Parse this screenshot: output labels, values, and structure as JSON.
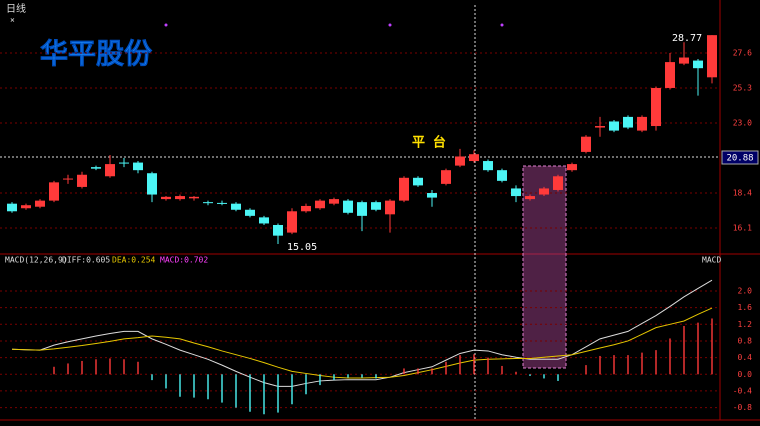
{
  "header": {
    "period": "日线",
    "close": "×"
  },
  "chart_data": [
    {
      "type": "candlestick",
      "title": "华平股份",
      "open": [
        17.7,
        17.4,
        17.5,
        17.9,
        19.3,
        18.8,
        20.1,
        19.5,
        20.4,
        20.4,
        19.7,
        18.0,
        18.0,
        18.05,
        17.8,
        17.75,
        17.7,
        17.3,
        16.8,
        16.3,
        15.8,
        17.2,
        17.4,
        17.7,
        17.9,
        17.8,
        17.8,
        17.0,
        17.9,
        19.4,
        18.4,
        19.0,
        20.2,
        20.5,
        20.5,
        19.9,
        18.7,
        18.0,
        18.3,
        18.6,
        19.9,
        21.1,
        22.7,
        23.1,
        23.4,
        22.5,
        22.8,
        25.3,
        26.9,
        27.1,
        26.0
      ],
      "high": [
        17.8,
        17.7,
        18.0,
        19.2,
        19.6,
        19.8,
        20.2,
        20.9,
        20.7,
        20.5,
        19.8,
        18.2,
        18.3,
        18.2,
        17.9,
        17.9,
        17.8,
        17.4,
        16.9,
        16.4,
        17.4,
        17.7,
        18.0,
        18.1,
        18.0,
        17.9,
        17.9,
        18.0,
        19.5,
        19.5,
        18.6,
        20.0,
        21.3,
        21.2,
        20.6,
        20.0,
        18.9,
        18.3,
        18.8,
        19.6,
        20.4,
        22.2,
        23.4,
        23.2,
        23.5,
        23.5,
        25.4,
        27.6,
        28.3,
        27.2,
        28.77
      ],
      "low": [
        17.1,
        17.3,
        17.4,
        17.8,
        19.0,
        18.7,
        19.9,
        19.4,
        20.1,
        19.7,
        17.8,
        17.9,
        17.9,
        17.9,
        17.6,
        17.6,
        17.2,
        16.8,
        16.3,
        15.05,
        15.7,
        17.1,
        17.3,
        17.6,
        17.0,
        15.9,
        17.2,
        15.8,
        17.8,
        18.8,
        17.5,
        18.9,
        20.1,
        20.4,
        19.8,
        19.1,
        17.8,
        17.9,
        18.2,
        18.5,
        19.8,
        21.0,
        22.1,
        22.4,
        22.6,
        22.4,
        22.5,
        25.2,
        26.8,
        24.8,
        25.6
      ],
      "close": [
        17.2,
        17.6,
        17.9,
        19.1,
        19.35,
        19.6,
        20.0,
        20.3,
        20.35,
        19.9,
        18.3,
        18.15,
        18.2,
        18.15,
        17.75,
        17.7,
        17.3,
        16.9,
        16.4,
        15.6,
        17.2,
        17.55,
        17.9,
        18.0,
        17.1,
        16.9,
        17.3,
        17.9,
        19.4,
        18.9,
        18.1,
        19.9,
        20.8,
        20.95,
        19.9,
        19.2,
        18.2,
        18.2,
        18.7,
        19.5,
        20.3,
        22.1,
        22.8,
        22.5,
        22.7,
        23.4,
        25.3,
        27.0,
        27.3,
        26.6,
        28.77
      ],
      "up_color": "#ff3a3a",
      "down_color": "#4cf5f5",
      "ylim": [
        14.46,
        30.75
      ],
      "yticks": [
        16.1,
        18.4,
        {
          "value": 23,
          "label": "23.0"
        },
        25.3,
        27.6
      ],
      "grid": true,
      "annotations": [
        "平 台",
        "28.77",
        "15.05"
      ],
      "crosshair_label": "20.88"
    },
    {
      "type": "macd",
      "title": "MACD(12,26,9)",
      "label": "MACD",
      "series": [
        {
          "name": "DIFF:0.605",
          "type": "line",
          "color": "#dcdcdc",
          "values": [
            0.6,
            0.59,
            0.58,
            0.7,
            0.78,
            0.85,
            0.92,
            0.98,
            1.03,
            1.03,
            0.85,
            0.72,
            0.58,
            0.47,
            0.36,
            0.22,
            0.07,
            -0.07,
            -0.2,
            -0.29,
            -0.29,
            -0.22,
            -0.16,
            -0.14,
            -0.13,
            -0.13,
            -0.13,
            -0.07,
            0.04,
            0.11,
            0.18,
            0.34,
            0.5,
            0.58,
            0.56,
            0.47,
            0.41,
            0.36,
            0.36,
            0.36,
            0.47,
            0.66,
            0.85,
            0.94,
            1.03,
            1.22,
            1.41,
            1.63,
            1.86,
            2.06,
            2.26
          ]
        },
        {
          "name": "DEA:0.254",
          "type": "line",
          "color": "#e6c700",
          "values": [
            0.6,
            0.59,
            0.58,
            0.61,
            0.65,
            0.69,
            0.74,
            0.79,
            0.85,
            0.88,
            0.92,
            0.89,
            0.85,
            0.75,
            0.66,
            0.56,
            0.47,
            0.38,
            0.28,
            0.17,
            0.07,
            0.02,
            -0.03,
            -0.07,
            -0.09,
            -0.09,
            -0.08,
            -0.07,
            -0.03,
            0.04,
            0.11,
            0.19,
            0.27,
            0.34,
            0.36,
            0.37,
            0.38,
            0.38,
            0.41,
            0.44,
            0.47,
            0.55,
            0.63,
            0.71,
            0.8,
            0.96,
            1.12,
            1.2,
            1.28,
            1.44,
            1.59
          ]
        },
        {
          "name": "MACD:0.702",
          "type": "bar",
          "color": "#ff40ff",
          "pos_color": "#ff3a3a",
          "neg_color": "#4cf5f5",
          "values": [
            0,
            0,
            0,
            0.18,
            0.26,
            0.32,
            0.36,
            0.38,
            0.36,
            0.3,
            -0.14,
            -0.34,
            -0.54,
            -0.56,
            -0.6,
            -0.68,
            -0.8,
            -0.9,
            -0.96,
            -0.92,
            -0.72,
            -0.48,
            -0.26,
            -0.14,
            -0.08,
            -0.08,
            -0.1,
            0,
            0.14,
            0.14,
            0.14,
            0.3,
            0.46,
            0.48,
            0.4,
            0.2,
            0.06,
            -0.04,
            -0.1,
            -0.16,
            0,
            0.22,
            0.44,
            0.46,
            0.46,
            0.52,
            0.58,
            0.86,
            1.16,
            1.24,
            1.34
          ]
        }
      ],
      "ylim": [
        -1.05,
        2.6
      ],
      "yticks": [
        {
          "value": 2,
          "label": "2.0"
        },
        1.6,
        1.2,
        0.8,
        0.4,
        {
          "value": 0,
          "label": "0.0"
        },
        -0.4,
        -0.8
      ],
      "grid": true
    }
  ]
}
